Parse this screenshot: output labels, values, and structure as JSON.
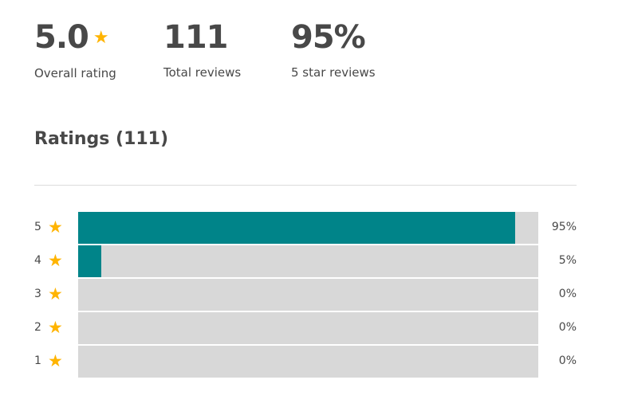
{
  "summary": {
    "overall": {
      "value": "5.0",
      "label": "Overall rating",
      "icon": "star-icon"
    },
    "total": {
      "value": "111",
      "label": "Total reviews"
    },
    "five_star": {
      "value": "95%",
      "label": "5 star reviews"
    }
  },
  "ratings": {
    "title": "Ratings (111)",
    "colors": {
      "fill": "#008489",
      "track": "#d8d8d8",
      "star": "#ffb400"
    },
    "rows": [
      {
        "stars": "5",
        "percent": 95,
        "label": "95%"
      },
      {
        "stars": "4",
        "percent": 5,
        "label": "5%"
      },
      {
        "stars": "3",
        "percent": 0,
        "label": "0%"
      },
      {
        "stars": "2",
        "percent": 0,
        "label": "0%"
      },
      {
        "stars": "1",
        "percent": 0,
        "label": "0%"
      }
    ]
  }
}
